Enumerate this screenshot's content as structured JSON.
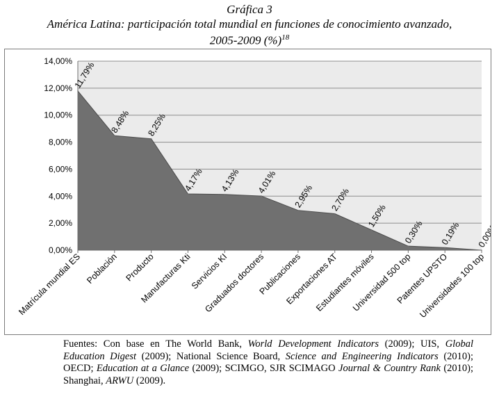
{
  "heading": {
    "label": "Gráfica 3",
    "title": "América Latina: participación total mundial en funciones de conocimiento avanzado,",
    "period": "2005-2009 (%)",
    "note_ref": "18"
  },
  "chart_data": {
    "type": "area",
    "categories": [
      "Matrícula mundial ES",
      "Población",
      "Producto",
      "Manufacturas Kti",
      "Servicios KI",
      "Graduados doctores",
      "Publicaciones",
      "Exportaciones AT",
      "Estudiantes móviles",
      "Universidad 500 top",
      "Patentes UPSTO",
      "Universidades 100 top"
    ],
    "values": [
      11.79,
      8.48,
      8.25,
      4.17,
      4.13,
      4.01,
      2.95,
      2.7,
      1.5,
      0.3,
      0.19,
      0.0
    ],
    "data_labels": [
      "11,79%",
      "8,48%",
      "8,25%",
      "4,17%",
      "4,13%",
      "4,01%",
      "2,95%",
      "2,70%",
      "1,50%",
      "0,30%",
      "0,19%",
      "0,00%"
    ],
    "y_ticks": [
      "0,00%",
      "2,00%",
      "4,00%",
      "6,00%",
      "8,00%",
      "10,00%",
      "12,00%",
      "14,00%"
    ],
    "ylim": [
      0,
      14
    ],
    "grid": true,
    "colors": {
      "area": "#707070",
      "plot_bg": "#ebebeb",
      "grid": "#8c8c8c"
    }
  },
  "sources": [
    {
      "t": "Fuentes: Con base en The World Bank, ",
      "i": false
    },
    {
      "t": "World Development Indicators",
      "i": true
    },
    {
      "t": " (2009); UIS, ",
      "i": false
    },
    {
      "t": "Global Education Digest",
      "i": true
    },
    {
      "t": " (2009); National Science Board, ",
      "i": false
    },
    {
      "t": "Science and Engineering Indicators",
      "i": true
    },
    {
      "t": " (2010); OECD; ",
      "i": false
    },
    {
      "t": "Education at a Glance",
      "i": true
    },
    {
      "t": " (2009); SCIMGO, SJR SCIMAGO ",
      "i": false
    },
    {
      "t": "Journal & Country Rank",
      "i": true
    },
    {
      "t": " (2010); Shanghai, ",
      "i": false
    },
    {
      "t": "ARWU",
      "i": true
    },
    {
      "t": " (2009).",
      "i": false
    }
  ]
}
